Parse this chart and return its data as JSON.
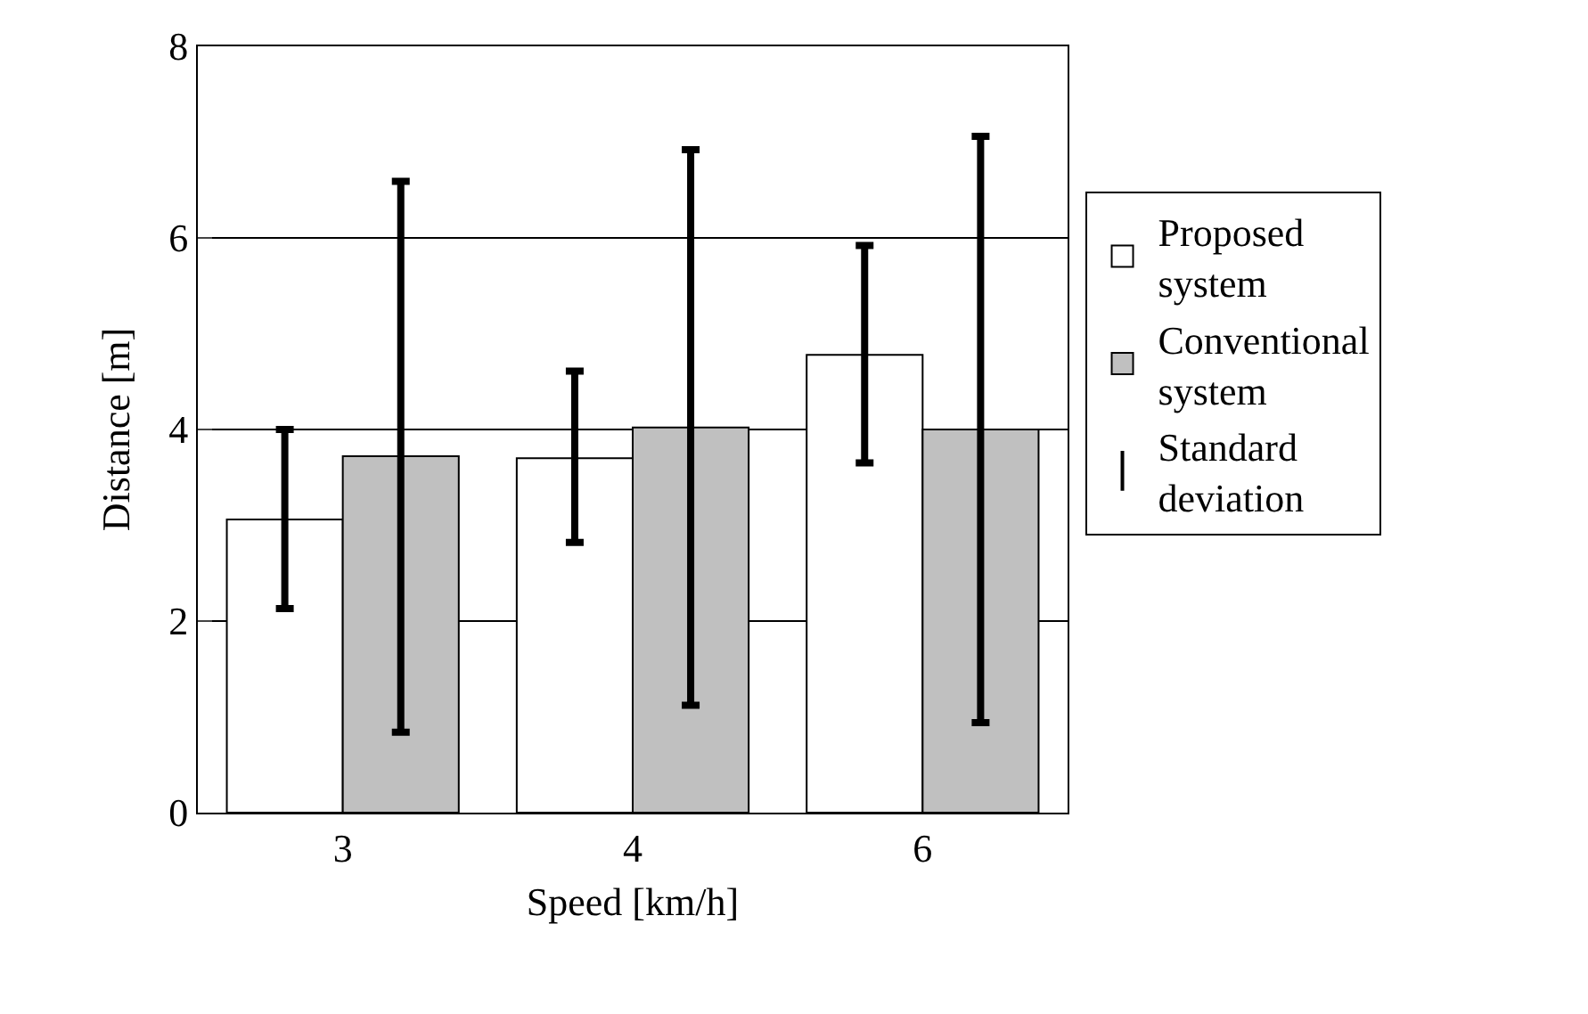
{
  "chart_data": {
    "type": "bar",
    "xlabel": "Speed [km/h]",
    "ylabel": "Distance [m]",
    "categories": [
      "3",
      "4",
      "6"
    ],
    "series": [
      {
        "name": "Proposed system",
        "color": "#ffffff",
        "values": [
          3.06,
          3.7,
          4.78
        ],
        "errors": [
          [
            2.13,
            4.0
          ],
          [
            2.82,
            4.61
          ],
          [
            3.65,
            5.92
          ]
        ]
      },
      {
        "name": "Conventional system",
        "color": "#c0c0c0",
        "values": [
          3.72,
          4.02,
          4.0
        ],
        "errors": [
          [
            0.84,
            6.59
          ],
          [
            1.12,
            6.92
          ],
          [
            0.94,
            7.06
          ]
        ]
      }
    ],
    "annotations": [
      "Standard deviation"
    ],
    "ylim": [
      0,
      8
    ],
    "yticks": [
      0,
      2,
      4,
      6,
      8
    ],
    "grid": "y",
    "legend": "right"
  }
}
